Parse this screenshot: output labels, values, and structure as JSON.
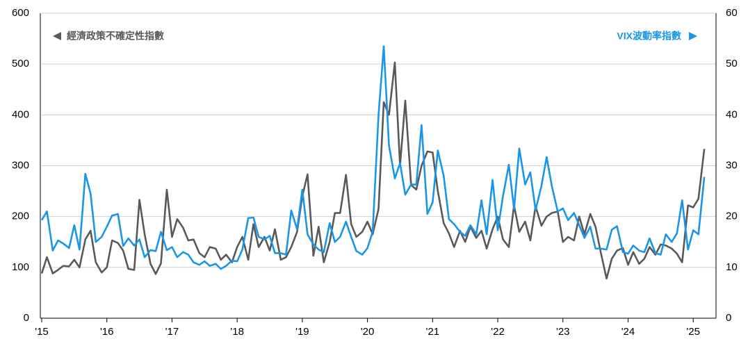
{
  "chart_data": {
    "type": "line",
    "x": [
      2015,
      2015.08,
      2015.17,
      2015.25,
      2015.33,
      2015.42,
      2015.5,
      2015.58,
      2015.67,
      2015.75,
      2015.83,
      2015.92,
      2016,
      2016.08,
      2016.17,
      2016.25,
      2016.33,
      2016.42,
      2016.5,
      2016.58,
      2016.67,
      2016.75,
      2016.83,
      2016.92,
      2017,
      2017.08,
      2017.17,
      2017.25,
      2017.33,
      2017.42,
      2017.5,
      2017.58,
      2017.67,
      2017.75,
      2017.83,
      2017.92,
      2018,
      2018.08,
      2018.17,
      2018.25,
      2018.33,
      2018.42,
      2018.5,
      2018.58,
      2018.67,
      2018.75,
      2018.83,
      2018.92,
      2019,
      2019.08,
      2019.17,
      2019.25,
      2019.33,
      2019.42,
      2019.5,
      2019.58,
      2019.67,
      2019.75,
      2019.83,
      2019.92,
      2020,
      2020.08,
      2020.17,
      2020.25,
      2020.33,
      2020.42,
      2020.5,
      2020.58,
      2020.67,
      2020.75,
      2020.83,
      2020.92,
      2021,
      2021.08,
      2021.17,
      2021.25,
      2021.33,
      2021.42,
      2021.5,
      2021.58,
      2021.67,
      2021.75,
      2021.83,
      2021.92,
      2022,
      2022.08,
      2022.17,
      2022.25,
      2022.33,
      2022.42,
      2022.5,
      2022.58,
      2022.67,
      2022.75,
      2022.83,
      2022.92,
      2023,
      2023.08,
      2023.17,
      2023.25,
      2023.33,
      2023.42,
      2023.5,
      2023.58,
      2023.67,
      2023.75,
      2023.83,
      2023.92,
      2024,
      2024.08,
      2024.17,
      2024.25,
      2024.33,
      2024.42,
      2024.5,
      2024.58,
      2024.67,
      2024.75,
      2024.83,
      2024.92,
      2025,
      2025.08,
      2025.17
    ],
    "series": [
      {
        "name": "經濟政策不確定性指數",
        "color": "#595959",
        "axis": "y",
        "values": [
          88,
          120,
          88,
          95,
          103,
          102,
          115,
          100,
          155,
          172,
          110,
          90,
          100,
          153,
          148,
          133,
          97,
          95,
          233,
          165,
          107,
          87,
          108,
          253,
          160,
          195,
          178,
          153,
          155,
          128,
          120,
          140,
          137,
          115,
          125,
          110,
          140,
          160,
          115,
          185,
          140,
          160,
          133,
          175,
          115,
          120,
          140,
          170,
          240,
          283,
          123,
          180,
          110,
          150,
          207,
          207,
          282,
          185,
          160,
          170,
          190,
          165,
          215,
          425,
          400,
          503,
          300,
          428,
          262,
          253,
          300,
          328,
          326,
          250,
          187,
          167,
          140,
          172,
          150,
          180,
          158,
          172,
          137,
          175,
          200,
          155,
          140,
          222,
          170,
          190,
          153,
          220,
          182,
          200,
          207,
          210,
          150,
          160,
          153,
          200,
          165,
          205,
          180,
          130,
          78,
          117,
          133,
          138,
          105,
          130,
          107,
          117,
          140,
          125,
          145,
          143,
          137,
          127,
          110,
          222,
          218,
          235,
          333
        ]
      },
      {
        "name": "VIX波動率指數",
        "color": "#1a96e8",
        "axis": "y2",
        "values": [
          19.3,
          21,
          13.3,
          15.3,
          14.7,
          13.8,
          18.3,
          13.5,
          28.4,
          24.5,
          15,
          16,
          18,
          20.2,
          20.5,
          14.2,
          15.7,
          14.3,
          15.5,
          12,
          13.4,
          13.2,
          17,
          13.4,
          14,
          12,
          13,
          12.5,
          11,
          10.5,
          11.2,
          10.3,
          10.7,
          9.7,
          10.3,
          11.3,
          11.2,
          13.5,
          19.7,
          19.8,
          16,
          15.5,
          16.2,
          12.8,
          12.8,
          12.5,
          21.2,
          17.5,
          25.3,
          16.5,
          14.5,
          13.5,
          13,
          18.7,
          15,
          16,
          19,
          16,
          13.2,
          12.5,
          13.8,
          17,
          40,
          53.5,
          34,
          27.5,
          30.5,
          24.3,
          26.3,
          26.3,
          38,
          20.5,
          22.8,
          33,
          28,
          19.5,
          18.5,
          17,
          16.2,
          18.3,
          16.5,
          23.2,
          16.5,
          27.2,
          17.3,
          24,
          30.2,
          21.5,
          33.4,
          26.3,
          28.7,
          21.3,
          26,
          31.7,
          26,
          21,
          21.6,
          19.3,
          20.7,
          18.3,
          15.8,
          18,
          13.7,
          13.7,
          13.5,
          17.4,
          18.1,
          13,
          12.7,
          14.3,
          13.3,
          13,
          15.7,
          12.8,
          12.5,
          16.5,
          15,
          16.7,
          23.2,
          13.5,
          17.3,
          16.5,
          27.8
        ]
      }
    ],
    "xlim": [
      2015,
      2025.35
    ],
    "xticks": [
      {
        "value": 2015,
        "label": "'15"
      },
      {
        "value": 2016,
        "label": "'16"
      },
      {
        "value": 2017,
        "label": "'17"
      },
      {
        "value": 2018,
        "label": "'18"
      },
      {
        "value": 2019,
        "label": "'19"
      },
      {
        "value": 2020,
        "label": "'20"
      },
      {
        "value": 2021,
        "label": "'21"
      },
      {
        "value": 2022,
        "label": "'22"
      },
      {
        "value": 2023,
        "label": "'23"
      },
      {
        "value": 2024,
        "label": "'24"
      },
      {
        "value": 2025,
        "label": "'25"
      }
    ],
    "ylim": [
      0,
      600
    ],
    "yticks": [
      0,
      100,
      200,
      300,
      400,
      500,
      600
    ],
    "y2lim": [
      0,
      60
    ],
    "y2ticks": [
      0,
      10,
      20,
      30,
      40,
      50,
      60
    ],
    "grid": true
  }
}
